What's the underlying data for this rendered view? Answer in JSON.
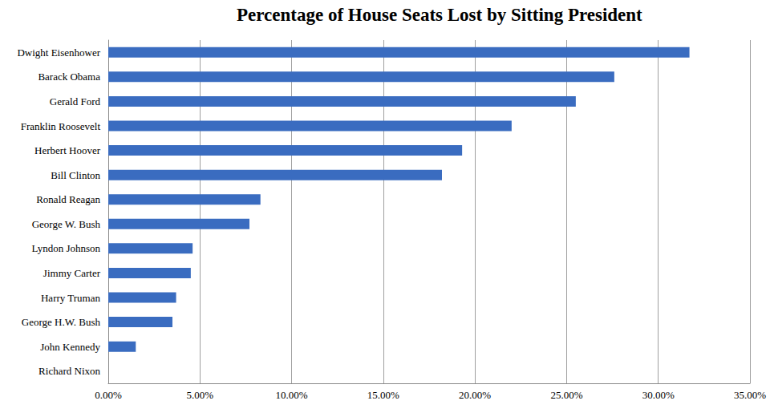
{
  "chart_data": {
    "type": "bar",
    "title": "Percentage of House Seats Lost by Sitting President",
    "orientation": "horizontal",
    "categories": [
      "Dwight Eisenhower",
      "Barack Obama",
      "Gerald Ford",
      "Franklin Roosevelt",
      "Herbert Hoover",
      "Bill Clinton",
      "Ronald Reagan",
      "George W. Bush",
      "Lyndon Johnson",
      "Jimmy Carter",
      "Harry Truman",
      "George H.W. Bush",
      "John Kennedy",
      "Richard Nixon"
    ],
    "values": [
      31.7,
      27.6,
      25.5,
      22.0,
      19.3,
      18.2,
      8.3,
      7.7,
      4.6,
      4.5,
      3.7,
      3.5,
      1.5,
      0
    ],
    "color": "#3a6cc0",
    "xlim": [
      0,
      35
    ],
    "xticks": [
      {
        "value": 0,
        "label": "0.00%"
      },
      {
        "value": 5,
        "label": "5.00%"
      },
      {
        "value": 10,
        "label": "10.00%"
      },
      {
        "value": 15,
        "label": "15.00%"
      },
      {
        "value": 20,
        "label": "20.00%"
      },
      {
        "value": 25,
        "label": "25.00%"
      },
      {
        "value": 30,
        "label": "30.00%"
      },
      {
        "value": 35,
        "label": "35.00%"
      }
    ],
    "grid": true
  }
}
